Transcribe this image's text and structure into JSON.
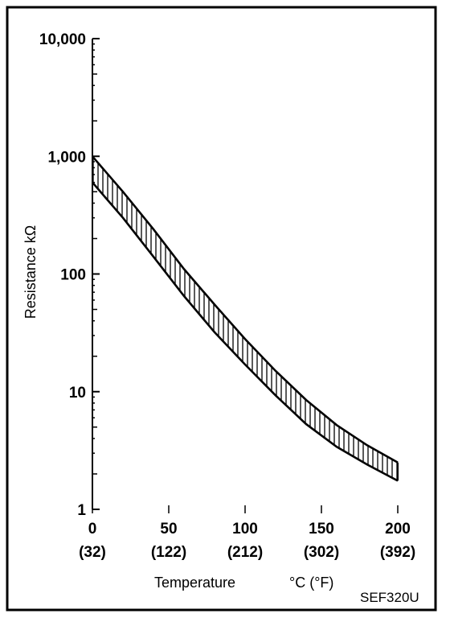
{
  "chart_data": {
    "type": "area",
    "x_scale": "linear",
    "y_scale": "log",
    "xlim": [
      0,
      200
    ],
    "ylim": [
      1,
      10000
    ],
    "x_ticks": [
      {
        "value": 0,
        "label": "0",
        "label_f": "(32)"
      },
      {
        "value": 50,
        "label": "50",
        "label_f": "(122)"
      },
      {
        "value": 100,
        "label": "100",
        "label_f": "(212)"
      },
      {
        "value": 150,
        "label": "150",
        "label_f": "(302)"
      },
      {
        "value": 200,
        "label": "200",
        "label_f": "(392)"
      }
    ],
    "y_ticks": [
      {
        "value": 1,
        "label": "1"
      },
      {
        "value": 10,
        "label": "10"
      },
      {
        "value": 100,
        "label": "100"
      },
      {
        "value": 1000,
        "label": "1,000"
      },
      {
        "value": 10000,
        "label": "10,000"
      }
    ],
    "xlabel": "Temperature",
    "xlabel_units": "°C (°F)",
    "ylabel": "Resistance kΩ",
    "code": "SEF320U",
    "grid": false,
    "band": {
      "x": [
        0,
        20,
        40,
        60,
        80,
        100,
        120,
        140,
        160,
        180,
        200
      ],
      "upper": [
        1000,
        500,
        240,
        110,
        55,
        28,
        15,
        8.5,
        5.2,
        3.5,
        2.5
      ],
      "lower": [
        600,
        300,
        140,
        65,
        32,
        17,
        9.3,
        5.3,
        3.4,
        2.4,
        1.75
      ]
    }
  }
}
